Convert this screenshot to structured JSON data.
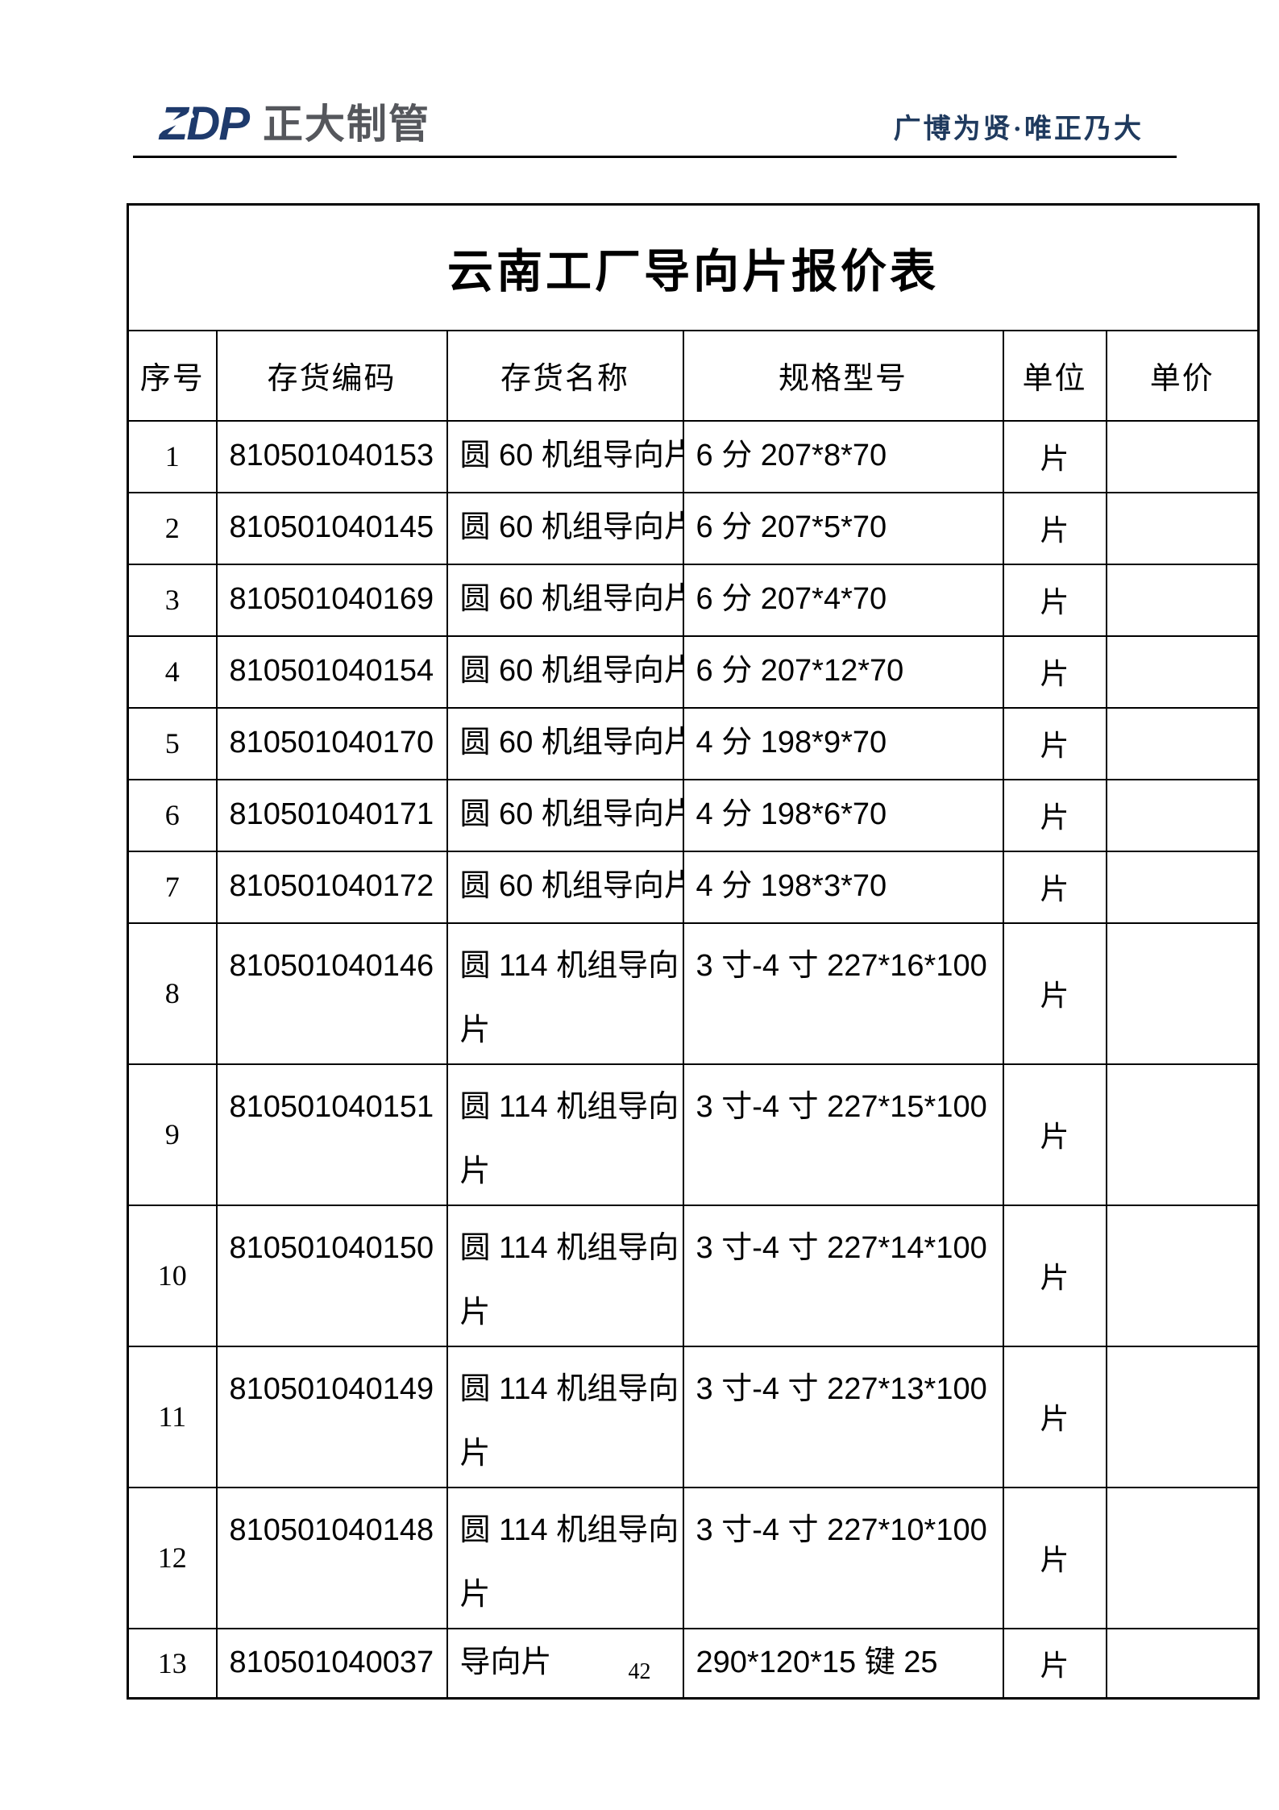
{
  "header": {
    "logo_abbr": "ZDP",
    "logo_name": "正大制管",
    "slogan": "广博为贤·唯正乃大"
  },
  "theme": {
    "logo_blue": "#1e3a6c",
    "logo_gray": "#55575c",
    "slogan_navy": "#1f3a5e",
    "border_black": "#000000"
  },
  "table": {
    "title": "云南工厂导向片报价表",
    "columns": [
      "序号",
      "存货编码",
      "存货名称",
      "规格型号",
      "单位",
      "单价"
    ],
    "rows": [
      {
        "no": "1",
        "code": "810501040153",
        "name": "圆 60 机组导向片",
        "spec": "6 分 207*8*70",
        "unit": "片",
        "price": ""
      },
      {
        "no": "2",
        "code": "810501040145",
        "name": "圆 60 机组导向片",
        "spec": "6 分 207*5*70",
        "unit": "片",
        "price": ""
      },
      {
        "no": "3",
        "code": "810501040169",
        "name": "圆 60 机组导向片",
        "spec": "6 分 207*4*70",
        "unit": "片",
        "price": ""
      },
      {
        "no": "4",
        "code": "810501040154",
        "name": "圆 60 机组导向片",
        "spec": "6 分 207*12*70",
        "unit": "片",
        "price": ""
      },
      {
        "no": "5",
        "code": "810501040170",
        "name": "圆 60 机组导向片",
        "spec": "4 分 198*9*70",
        "unit": "片",
        "price": ""
      },
      {
        "no": "6",
        "code": "810501040171",
        "name": "圆 60 机组导向片",
        "spec": "4 分 198*6*70",
        "unit": "片",
        "price": ""
      },
      {
        "no": "7",
        "code": "810501040172",
        "name": "圆 60 机组导向片",
        "spec": "4 分 198*3*70",
        "unit": "片",
        "price": ""
      },
      {
        "no": "8",
        "code": "810501040146",
        "name": "圆 114 机组导向片",
        "spec": "3 寸-4 寸 227*16*100",
        "unit": "片",
        "price": ""
      },
      {
        "no": "9",
        "code": "810501040151",
        "name": "圆 114 机组导向片",
        "spec": "3 寸-4 寸 227*15*100",
        "unit": "片",
        "price": ""
      },
      {
        "no": "10",
        "code": "810501040150",
        "name": "圆 114 机组导向片",
        "spec": "3 寸-4 寸 227*14*100",
        "unit": "片",
        "price": ""
      },
      {
        "no": "11",
        "code": "810501040149",
        "name": "圆 114 机组导向片",
        "spec": "3 寸-4 寸 227*13*100",
        "unit": "片",
        "price": ""
      },
      {
        "no": "12",
        "code": "810501040148",
        "name": "圆 114 机组导向片",
        "spec": "3 寸-4 寸 227*10*100",
        "unit": "片",
        "price": ""
      },
      {
        "no": "13",
        "code": "810501040037",
        "name": "导向片",
        "spec": "290*120*15 键 25",
        "unit": "片",
        "price": ""
      }
    ]
  },
  "footer": {
    "page_number": "42"
  }
}
